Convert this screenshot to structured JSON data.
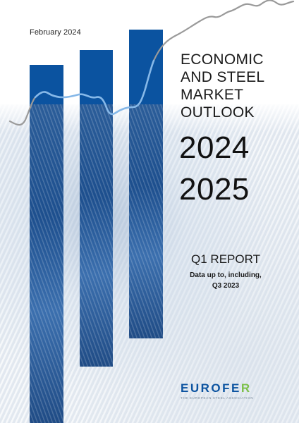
{
  "cover": {
    "date": "February 2024",
    "title_lines": [
      "ECONOMIC",
      "AND STEEL",
      "MARKET",
      "OUTLOOK"
    ],
    "years": [
      "2024",
      "2025"
    ],
    "report": "Q1 REPORT",
    "subtitle_lines": [
      "Data up to, including,",
      "Q3 2023"
    ]
  },
  "logo": {
    "word_main": "EUROFE",
    "word_accent": "R",
    "tagline": "THE EUROPEAN STEEL ASSOCIATION"
  },
  "colors": {
    "bar_blue": "#0b53a0",
    "line_gray": "#9a9a9a",
    "line_blue": "#86b8e8",
    "logo_green": "#7cc04a"
  }
}
